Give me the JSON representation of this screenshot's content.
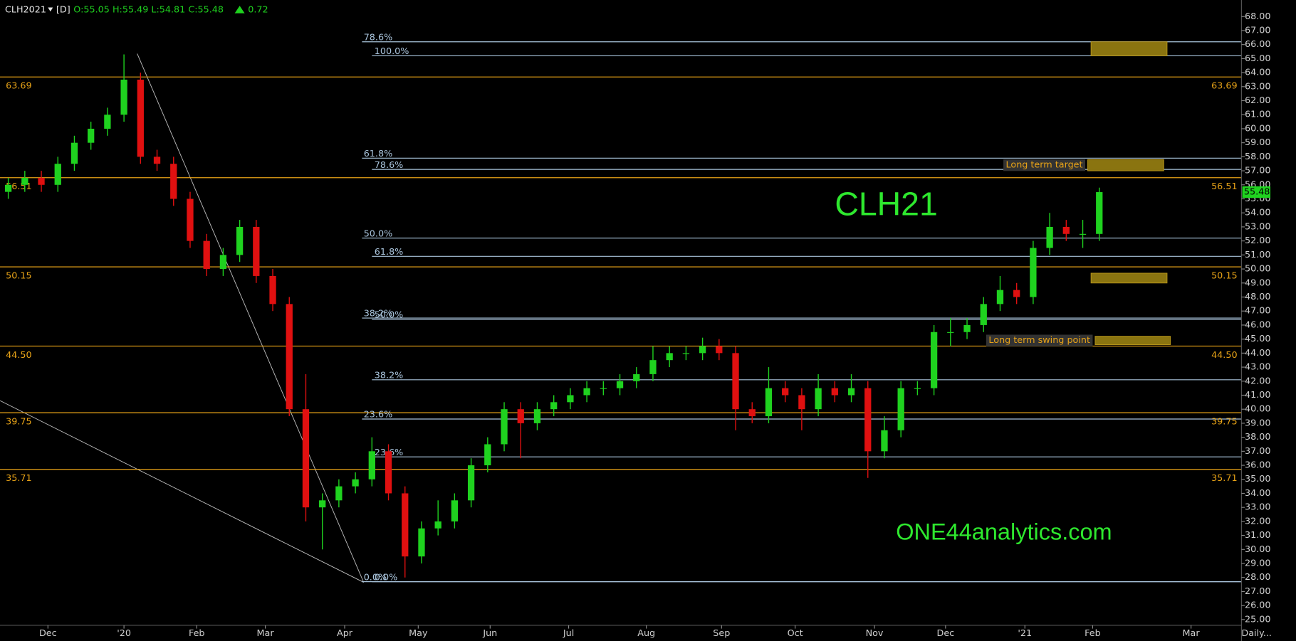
{
  "chart_data": {
    "type": "candlestick",
    "header": {
      "symbol": "CLH2021",
      "interval": "[D]",
      "ohlc": "O:55.05 H:55.49 L:54.81 C:55.48",
      "change": 0.72
    },
    "title": "CLH21",
    "watermark": "ONE44analytics.com",
    "x_labels": [
      "Dec",
      "'20",
      "Feb",
      "Mar",
      "Apr",
      "May",
      "Jun",
      "Jul",
      "Aug",
      "Sep",
      "Oct",
      "Nov",
      "Dec",
      "'21",
      "Feb",
      "Mar"
    ],
    "interval_menu": "Daily...",
    "ylim": [
      24.59,
      69.18
    ],
    "yticks": [
      {
        "value": 25,
        "label": "25.00"
      },
      {
        "value": 26,
        "label": "26.00"
      },
      {
        "value": 27,
        "label": "27.00"
      },
      {
        "value": 28,
        "label": "28.00"
      },
      {
        "value": 29,
        "label": "29.00"
      },
      {
        "value": 30,
        "label": "30.00"
      },
      {
        "value": 31,
        "label": "31.00"
      },
      {
        "value": 32,
        "label": "32.00"
      },
      {
        "value": 33,
        "label": "33.00"
      },
      {
        "value": 34,
        "label": "34.00"
      },
      {
        "value": 35,
        "label": "35.00"
      },
      {
        "value": 36,
        "label": "36.00"
      },
      {
        "value": 37,
        "label": "37.00"
      },
      {
        "value": 38,
        "label": "38.00"
      },
      {
        "value": 39,
        "label": "39.00"
      },
      {
        "value": 40,
        "label": "40.00"
      },
      {
        "value": 41,
        "label": "41.00"
      },
      {
        "value": 42,
        "label": "42.00"
      },
      {
        "value": 43,
        "label": "43.00"
      },
      {
        "value": 44,
        "label": "44.00"
      },
      {
        "value": 45,
        "label": "45.00"
      },
      {
        "value": 46,
        "label": "46.00"
      },
      {
        "value": 47,
        "label": "47.00"
      },
      {
        "value": 48,
        "label": "48.00"
      },
      {
        "value": 49,
        "label": "49.00"
      },
      {
        "value": 50,
        "label": "50.00"
      },
      {
        "value": 51,
        "label": "51.00"
      },
      {
        "value": 52,
        "label": "52.00"
      },
      {
        "value": 53,
        "label": "53.00"
      },
      {
        "value": 54,
        "label": "54.00"
      },
      {
        "value": 55,
        "label": "55.00"
      },
      {
        "value": 56,
        "label": "56.00"
      },
      {
        "value": 57,
        "label": "57.00"
      },
      {
        "value": 58,
        "label": "58.00"
      },
      {
        "value": 59,
        "label": "59.00"
      },
      {
        "value": 60,
        "label": "60.00"
      },
      {
        "value": 61,
        "label": "61.00"
      },
      {
        "value": 62,
        "label": "62.00"
      },
      {
        "value": 63,
        "label": "63.00"
      },
      {
        "value": 64,
        "label": "64.00"
      },
      {
        "value": 65,
        "label": "65.00"
      },
      {
        "value": 66,
        "label": "66.00"
      },
      {
        "value": 67,
        "label": "67.00"
      },
      {
        "value": 68,
        "label": "68.00"
      }
    ],
    "up_color": "#1fd21f",
    "down_color": "#e01010",
    "open": [
      55.5,
      56,
      56.5,
      56,
      57.5,
      59,
      60,
      61,
      63.5,
      58,
      57.5,
      55,
      52,
      50,
      51,
      53,
      49.5,
      47.5,
      40,
      33,
      33.5,
      34.5,
      35,
      37,
      34,
      29.5,
      31.5,
      32,
      33.5,
      36,
      37.5,
      40,
      39,
      40,
      40.5,
      41,
      41.5,
      41.5,
      42,
      42.5,
      43.5,
      44,
      44,
      44.5,
      44,
      40,
      39.5,
      41.5,
      41,
      40,
      41.5,
      41,
      41.5,
      37,
      38.5,
      41.5,
      41.5,
      45.5,
      45.5,
      46,
      47.5,
      48.5,
      48,
      51.5,
      53,
      52.5,
      52.5
    ],
    "high": [
      56.5,
      57,
      57,
      58,
      59.5,
      60.5,
      61.5,
      65.3,
      64,
      58.5,
      58,
      55.5,
      52.5,
      51.5,
      53.5,
      53.5,
      50,
      48,
      42.5,
      34,
      35,
      35.5,
      38,
      37.5,
      34.5,
      32,
      33.5,
      34,
      36.5,
      38,
      40.5,
      40.5,
      40.5,
      41,
      41.5,
      42,
      42,
      42.5,
      43,
      44.5,
      44.5,
      44.5,
      45.1,
      45,
      44.5,
      40.5,
      43,
      42,
      41.5,
      42.5,
      42,
      42.5,
      42,
      39.5,
      42,
      42,
      46,
      46.5,
      46.5,
      48,
      49.5,
      49,
      52,
      54,
      53.5,
      53.5,
      55.8
    ],
    "low": [
      55,
      55.5,
      55.5,
      55.5,
      57,
      58.5,
      59.5,
      60.5,
      57.5,
      57,
      54.5,
      51.5,
      49.5,
      49.5,
      50.5,
      49,
      47,
      39.5,
      32,
      30,
      33,
      34,
      34.5,
      33.5,
      28,
      29,
      31,
      31.5,
      33,
      35.5,
      37,
      36.5,
      38.5,
      39.5,
      40,
      40.5,
      41,
      41,
      41.5,
      42,
      43,
      43.5,
      43.5,
      43.5,
      38.5,
      39,
      39,
      40.5,
      38.5,
      39.5,
      40.5,
      40.5,
      35.1,
      36.5,
      38,
      41,
      41,
      44.5,
      45,
      45.5,
      47,
      47.5,
      47.5,
      51,
      52,
      51.5,
      52
    ],
    "close": [
      56,
      56.5,
      56,
      57.5,
      59,
      60,
      61,
      63.5,
      58,
      57.5,
      55,
      52,
      50,
      51,
      53,
      49.5,
      47.5,
      40,
      33,
      33.5,
      34.5,
      35,
      37,
      34,
      29.5,
      31.5,
      32,
      33.5,
      36,
      37.5,
      40,
      39,
      40,
      40.5,
      41,
      41.5,
      41.5,
      42,
      42.5,
      43.5,
      44,
      44,
      44.5,
      44,
      40,
      39.5,
      41.5,
      41,
      40,
      41.5,
      41,
      41.5,
      37,
      38.5,
      41.5,
      41.5,
      45.5,
      45.5,
      46,
      47.5,
      48.5,
      48,
      51.5,
      53,
      52.5,
      52.5,
      55.48
    ],
    "levels": [
      63.69,
      56.51,
      50.15,
      {
        "value": 44.5,
        "label": "44.50"
      },
      39.75,
      35.71
    ],
    "level_color": "#e8a317",
    "fib_color": "#a9c4dc",
    "fib_retracements": [
      {
        "levels": [
          {
            "value": 66.2,
            "label": "78.6%"
          },
          {
            "value": 57.9,
            "label": "61.8%"
          },
          {
            "value": 52.2,
            "label": "50.0%"
          },
          {
            "value": 46.5,
            "label": "38.2%"
          },
          {
            "value": 39.3,
            "label": "23.6%"
          },
          {
            "value": 27.7,
            "label": "0.0%"
          }
        ]
      },
      {
        "levels": [
          {
            "value": 65.2,
            "label": "100.0%"
          },
          {
            "value": 57.1,
            "label": "78.6%"
          },
          {
            "value": 50.9,
            "label": "61.8%"
          },
          {
            "value": 46.4,
            "label": "50.0%"
          },
          {
            "value": 42.1,
            "label": "38.2%"
          },
          {
            "value": 36.6,
            "label": "23.6%"
          },
          {
            "value": 27.7,
            "label": "0.0%"
          }
        ]
      }
    ],
    "zone_color": "#8a7410",
    "zones": [
      {
        "top": 66.2,
        "bottom": 65.2
      },
      {
        "top": 57.8,
        "bottom": 57.0,
        "label": "Long term target"
      },
      {
        "top": 49.7,
        "bottom": 49.0
      },
      {
        "top": 45.2,
        "bottom": 44.6,
        "label": "Long term swing point"
      }
    ]
  }
}
